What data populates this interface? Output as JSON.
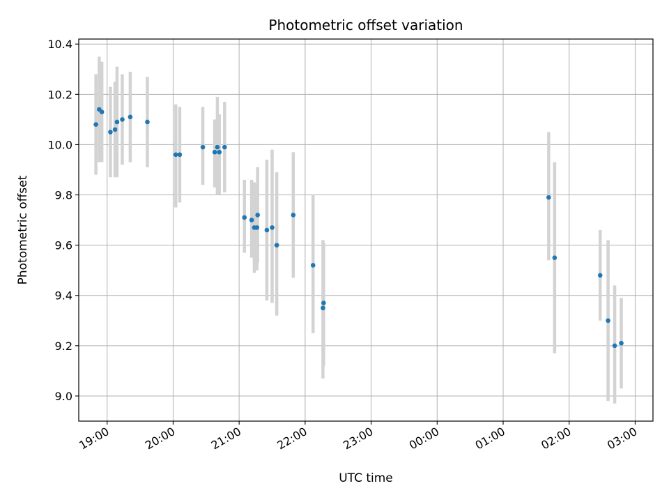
{
  "chart_data": {
    "type": "scatter",
    "title": "Photometric offset variation",
    "xlabel": "UTC time",
    "ylabel": "Photometric offset",
    "x_ticks": [
      "19:00",
      "20:00",
      "21:00",
      "22:00",
      "23:00",
      "00:00",
      "01:00",
      "02:00",
      "03:00"
    ],
    "x_tick_hours": [
      19,
      20,
      21,
      22,
      23,
      24,
      25,
      26,
      27
    ],
    "y_ticks": [
      "9.0",
      "9.2",
      "9.4",
      "9.6",
      "9.8",
      "10.0",
      "10.2",
      "10.4"
    ],
    "y_tick_values": [
      9.0,
      9.2,
      9.4,
      9.6,
      9.8,
      10.0,
      10.2,
      10.4
    ],
    "xlim_hours": [
      18.57,
      27.27
    ],
    "ylim": [
      8.9,
      10.42
    ],
    "grid": true,
    "point_color": "#1f77b4",
    "errorbar_color": "#d3d3d3",
    "points": [
      {
        "t": 18.83,
        "y": 10.08,
        "lo": 9.88,
        "hi": 10.28
      },
      {
        "t": 18.88,
        "y": 10.14,
        "lo": 9.93,
        "hi": 10.35
      },
      {
        "t": 18.92,
        "y": 10.13,
        "lo": 9.93,
        "hi": 10.33
      },
      {
        "t": 19.05,
        "y": 10.05,
        "lo": 9.87,
        "hi": 10.23
      },
      {
        "t": 19.12,
        "y": 10.06,
        "lo": 9.87,
        "hi": 10.25
      },
      {
        "t": 19.15,
        "y": 10.09,
        "lo": 9.87,
        "hi": 10.31
      },
      {
        "t": 19.23,
        "y": 10.1,
        "lo": 9.92,
        "hi": 10.28
      },
      {
        "t": 19.35,
        "y": 10.11,
        "lo": 9.93,
        "hi": 10.29
      },
      {
        "t": 19.61,
        "y": 10.09,
        "lo": 9.91,
        "hi": 10.27
      },
      {
        "t": 20.04,
        "y": 9.96,
        "lo": 9.75,
        "hi": 10.16
      },
      {
        "t": 20.1,
        "y": 9.96,
        "lo": 9.77,
        "hi": 10.15
      },
      {
        "t": 20.45,
        "y": 9.99,
        "lo": 9.84,
        "hi": 10.15
      },
      {
        "t": 20.63,
        "y": 9.97,
        "lo": 9.83,
        "hi": 10.1
      },
      {
        "t": 20.67,
        "y": 9.99,
        "lo": 9.8,
        "hi": 10.19
      },
      {
        "t": 20.7,
        "y": 9.97,
        "lo": 9.8,
        "hi": 10.12
      },
      {
        "t": 20.78,
        "y": 9.99,
        "lo": 9.81,
        "hi": 10.17
      },
      {
        "t": 21.08,
        "y": 9.71,
        "lo": 9.57,
        "hi": 9.86
      },
      {
        "t": 21.19,
        "y": 9.7,
        "lo": 9.55,
        "hi": 9.86
      },
      {
        "t": 21.23,
        "y": 9.67,
        "lo": 9.49,
        "hi": 9.85
      },
      {
        "t": 21.27,
        "y": 9.67,
        "lo": 9.5,
        "hi": 9.84
      },
      {
        "t": 21.28,
        "y": 9.72,
        "lo": 9.53,
        "hi": 9.91
      },
      {
        "t": 21.42,
        "y": 9.66,
        "lo": 9.38,
        "hi": 9.94
      },
      {
        "t": 21.5,
        "y": 9.67,
        "lo": 9.37,
        "hi": 9.98
      },
      {
        "t": 21.57,
        "y": 9.6,
        "lo": 9.32,
        "hi": 9.89
      },
      {
        "t": 21.82,
        "y": 9.72,
        "lo": 9.47,
        "hi": 9.97
      },
      {
        "t": 22.12,
        "y": 9.52,
        "lo": 9.25,
        "hi": 9.8
      },
      {
        "t": 22.27,
        "y": 9.35,
        "lo": 9.07,
        "hi": 9.62
      },
      {
        "t": 22.28,
        "y": 9.37,
        "lo": 9.12,
        "hi": 9.61
      },
      {
        "t": 25.69,
        "y": 9.79,
        "lo": 9.54,
        "hi": 10.05
      },
      {
        "t": 25.78,
        "y": 9.55,
        "lo": 9.17,
        "hi": 9.93
      },
      {
        "t": 26.47,
        "y": 9.48,
        "lo": 9.3,
        "hi": 9.66
      },
      {
        "t": 26.59,
        "y": 9.3,
        "lo": 8.98,
        "hi": 9.62
      },
      {
        "t": 26.69,
        "y": 9.2,
        "lo": 8.97,
        "hi": 9.44
      },
      {
        "t": 26.79,
        "y": 9.21,
        "lo": 9.03,
        "hi": 9.39
      }
    ]
  }
}
